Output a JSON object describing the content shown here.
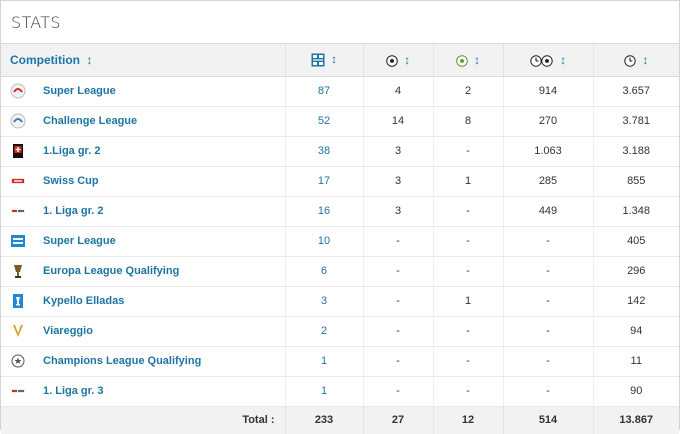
{
  "title": "STATS",
  "header": {
    "competition": "Competition",
    "sort_glyph": "↕",
    "icons": [
      "appearances-icon",
      "goals-icon",
      "assists-icon",
      "minutes-per-goal-icon",
      "minutes-played-icon"
    ]
  },
  "rows": [
    {
      "logo": "super-league-logo",
      "competition": "Super League",
      "apps": "87",
      "goals": "4",
      "assists": "2",
      "min_per_goal": "914",
      "minutes": "3.657"
    },
    {
      "logo": "challenge-league-logo",
      "competition": "Challenge League",
      "apps": "52",
      "goals": "14",
      "assists": "8",
      "min_per_goal": "270",
      "minutes": "3.781"
    },
    {
      "logo": "swiss-flag-logo",
      "competition": "1.Liga gr. 2",
      "apps": "38",
      "goals": "3",
      "assists": "-",
      "min_per_goal": "1.063",
      "minutes": "3.188"
    },
    {
      "logo": "swiss-cup-logo",
      "competition": "Swiss Cup",
      "apps": "17",
      "goals": "3",
      "assists": "1",
      "min_per_goal": "285",
      "minutes": "855"
    },
    {
      "logo": "liga-logo",
      "competition": "1. Liga gr. 2",
      "apps": "16",
      "goals": "3",
      "assists": "-",
      "min_per_goal": "449",
      "minutes": "1.348"
    },
    {
      "logo": "greek-super-league-logo",
      "competition": "Super League",
      "apps": "10",
      "goals": "-",
      "assists": "-",
      "min_per_goal": "-",
      "minutes": "405"
    },
    {
      "logo": "europa-league-logo",
      "competition": "Europa League Qualifying",
      "apps": "6",
      "goals": "-",
      "assists": "-",
      "min_per_goal": "-",
      "minutes": "296"
    },
    {
      "logo": "kypello-elladas-logo",
      "competition": "Kypello Elladas",
      "apps": "3",
      "goals": "-",
      "assists": "1",
      "min_per_goal": "-",
      "minutes": "142"
    },
    {
      "logo": "viareggio-logo",
      "competition": "Viareggio",
      "apps": "2",
      "goals": "-",
      "assists": "-",
      "min_per_goal": "-",
      "minutes": "94"
    },
    {
      "logo": "champions-league-logo",
      "competition": "Champions League Qualifying",
      "apps": "1",
      "goals": "-",
      "assists": "-",
      "min_per_goal": "-",
      "minutes": "11"
    },
    {
      "logo": "liga-logo",
      "competition": "1. Liga gr. 3",
      "apps": "1",
      "goals": "-",
      "assists": "-",
      "min_per_goal": "-",
      "minutes": "90"
    }
  ],
  "totals": {
    "label": "Total :",
    "apps": "233",
    "goals": "27",
    "assists": "12",
    "min_per_goal": "514",
    "minutes": "13.867"
  },
  "colors": {
    "link": "#1d75a3",
    "header_bg": "#f2f2f2",
    "border": "#d9d9d9",
    "assist_green": "#5a9e2f"
  }
}
